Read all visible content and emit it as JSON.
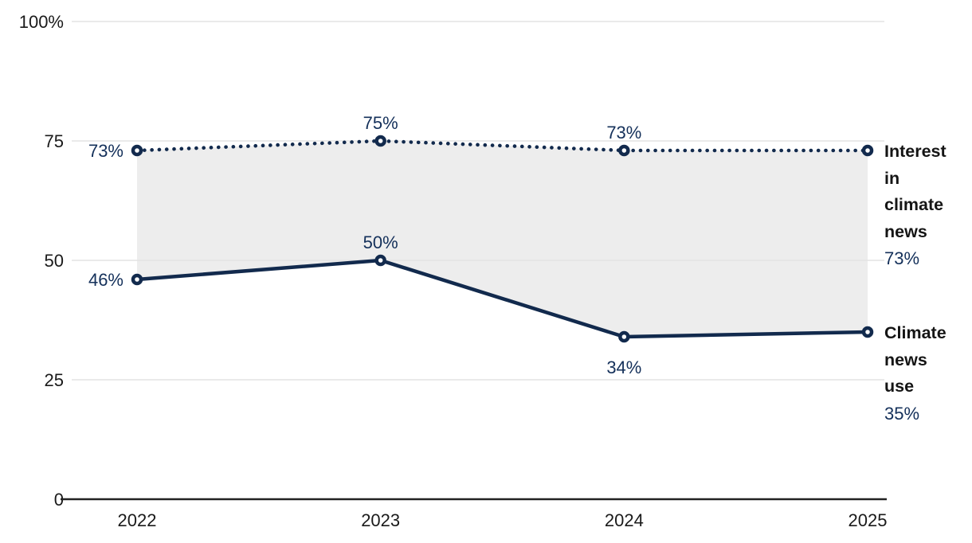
{
  "chart_data": {
    "type": "line",
    "x": [
      "2022",
      "2023",
      "2024",
      "2025"
    ],
    "series": [
      {
        "name": "Interest in climate news",
        "values": [
          73,
          75,
          73,
          73
        ],
        "line_style": "dotted",
        "point_labels": [
          "73%",
          "75%",
          "73%",
          null
        ],
        "label_positions": [
          "left",
          "above",
          "above",
          null
        ]
      },
      {
        "name": "Climate news use",
        "values": [
          46,
          50,
          34,
          35
        ],
        "line_style": "solid",
        "point_labels": [
          "46%",
          "50%",
          "34%",
          null
        ],
        "label_positions": [
          "left",
          "above",
          "below",
          null
        ]
      }
    ],
    "ylim": [
      0,
      100
    ],
    "yticks": [
      {
        "value": 100,
        "label": "100%"
      },
      {
        "value": 75,
        "label": "75"
      },
      {
        "value": 50,
        "label": "50"
      },
      {
        "value": 25,
        "label": "25"
      },
      {
        "value": 0,
        "label": "0"
      }
    ],
    "grid": "horizontal",
    "band_fill_between_series": true,
    "legend_position": "right-annotations"
  },
  "annotations": {
    "interest": {
      "lines": [
        "Interest",
        "in",
        "climate",
        "news"
      ],
      "value": "73%"
    },
    "use": {
      "lines": [
        "Climate",
        "news",
        "use"
      ],
      "value": "35%"
    }
  },
  "colors": {
    "series_navy": "#122a4d",
    "value_text_navy": "#14305a",
    "band_fill": "#ededed",
    "gridline": "#e3e3e3",
    "axis": "#222222",
    "tick_text": "#1a1a1a"
  }
}
